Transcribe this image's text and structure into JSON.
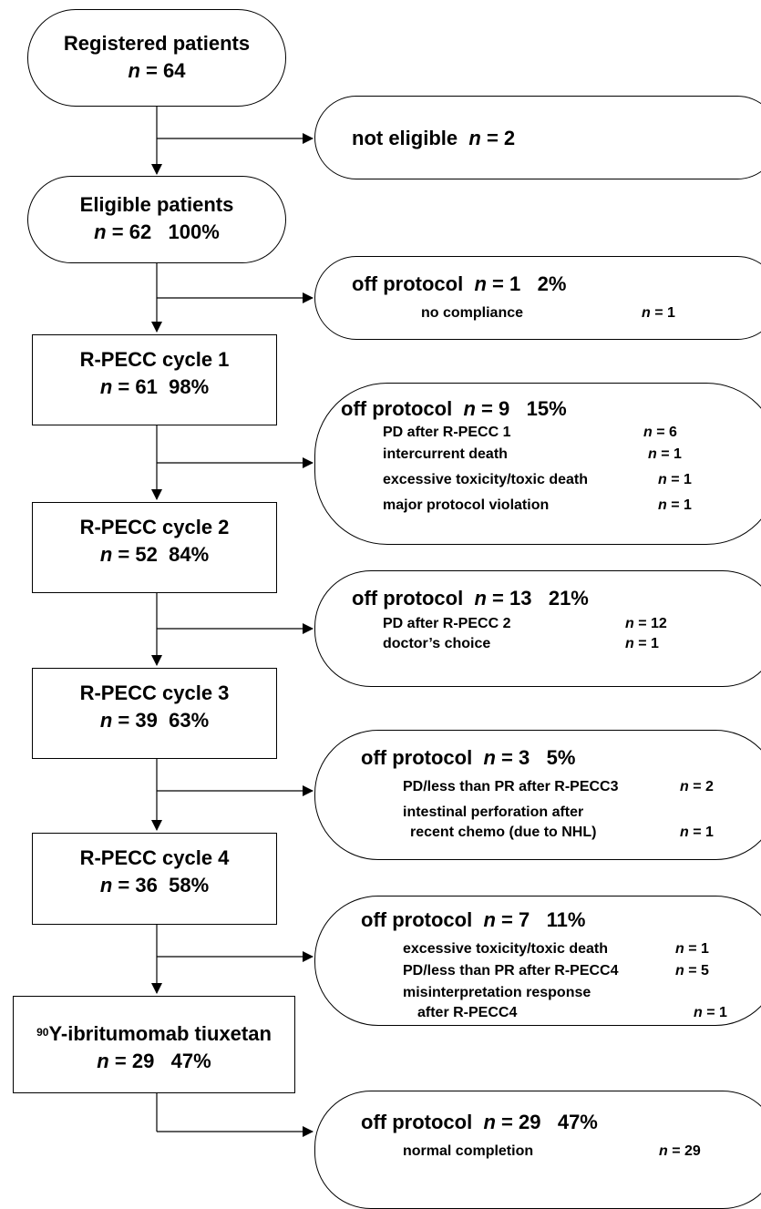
{
  "main_boxes": {
    "registered": {
      "title": "Registered patients",
      "count": "64",
      "pct": ""
    },
    "eligible": {
      "title": "Eligible patients",
      "count": "62",
      "pct": "100%"
    },
    "cycle1": {
      "title": "R-PECC cycle 1",
      "count": "61",
      "pct": "98%"
    },
    "cycle2": {
      "title": "R-PECC cycle 2",
      "count": "52",
      "pct": "84%"
    },
    "cycle3": {
      "title": "R-PECC cycle 3",
      "count": "39",
      "pct": "63%"
    },
    "cycle4": {
      "title": "R-PECC cycle 4",
      "count": "36",
      "pct": "58%"
    },
    "ibritumomab": {
      "title_sup": "90",
      "title": "Y-ibritumomab tiuxetan",
      "count": "29",
      "pct": "47%"
    }
  },
  "side_boxes": {
    "not_eligible": {
      "title": "not eligible",
      "count": "2"
    },
    "off1": {
      "title": "off protocol",
      "count": "1",
      "pct": "2%",
      "reasons": [
        {
          "text": "no compliance",
          "n": "1"
        }
      ]
    },
    "off2": {
      "title": "off protocol",
      "count": "9",
      "pct": "15%",
      "reasons": [
        {
          "text": "PD after R-PECC 1",
          "n": "6"
        },
        {
          "text": "intercurrent death",
          "n": "1"
        },
        {
          "text": "excessive toxicity/toxic death",
          "n": "1"
        },
        {
          "text": "major protocol violation",
          "n": "1"
        }
      ]
    },
    "off3": {
      "title": "off protocol",
      "count": "13",
      "pct": "21%",
      "reasons": [
        {
          "text": "PD after R-PECC 2",
          "n": "12"
        },
        {
          "text": "doctor’s choice",
          "n": "1"
        }
      ]
    },
    "off4": {
      "title": "off protocol",
      "count": "3",
      "pct": "5%",
      "reasons": [
        {
          "text": "PD/less than PR after R-PECC3",
          "n": "2"
        },
        {
          "text": "intestinal perforation after",
          "n": ""
        },
        {
          "text": "recent chemo (due to NHL)",
          "n": "1"
        }
      ]
    },
    "off5": {
      "title": "off protocol",
      "count": "7",
      "pct": "11%",
      "reasons": [
        {
          "text": "excessive toxicity/toxic death",
          "n": "1"
        },
        {
          "text": "PD/less than PR after R-PECC4",
          "n": "5"
        },
        {
          "text": "misinterpretation response",
          "n": ""
        },
        {
          "text": "after R-PECC4",
          "n": "1"
        }
      ]
    },
    "off6": {
      "title": "off protocol",
      "count": "29",
      "pct": "47%",
      "reasons": [
        {
          "text": "normal completion",
          "n": "29"
        }
      ]
    }
  },
  "labels": {
    "n_symbol": "n",
    "equals": "="
  }
}
